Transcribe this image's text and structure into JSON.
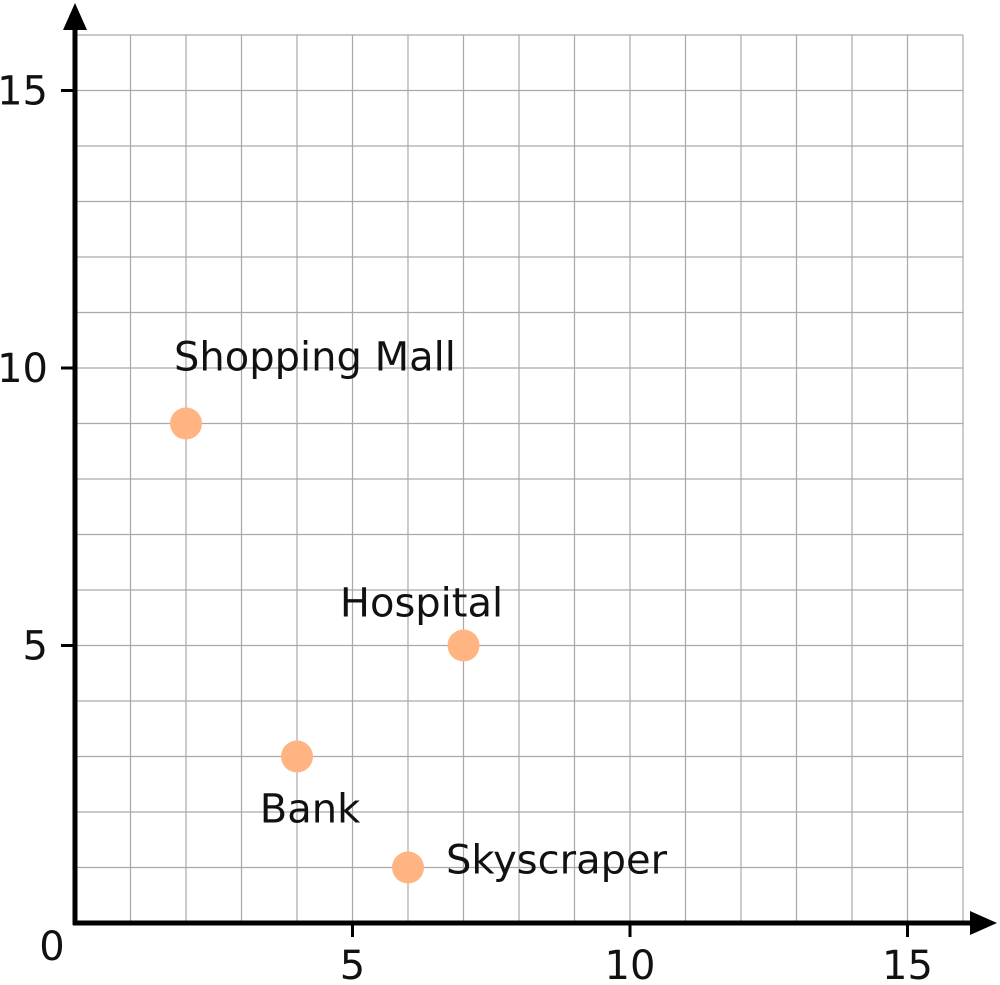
{
  "chart_data": {
    "type": "scatter",
    "xlim": [
      0,
      16
    ],
    "ylim": [
      0,
      16
    ],
    "grid": true,
    "x_ticks": [
      5,
      10,
      15
    ],
    "y_ticks": [
      5,
      10,
      15
    ],
    "origin_label": "0",
    "marker_color": "#ffb482",
    "points": [
      {
        "label": "Shopping Mall",
        "x": 2,
        "y": 9
      },
      {
        "label": "Hospital",
        "x": 7,
        "y": 5
      },
      {
        "label": "Bank",
        "x": 4,
        "y": 3
      },
      {
        "label": "Skyscraper",
        "x": 6,
        "y": 1
      }
    ]
  }
}
